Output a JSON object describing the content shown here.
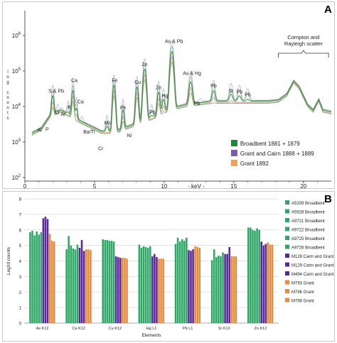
{
  "panel_a": {
    "tag": "A",
    "chart_data": {
      "type": "line",
      "xlabel": "- keV -",
      "ylabel": "log counts",
      "xlim": [
        0,
        22
      ],
      "ylim_log10": [
        1.9,
        6.7
      ],
      "x_ticks": [
        0,
        5,
        10,
        15,
        20
      ],
      "y_ticks": [
        {
          "exp": 2,
          "label": "10",
          "sup": "2"
        },
        {
          "exp": 3,
          "label": "10",
          "sup": "3"
        },
        {
          "exp": 4,
          "label": "10",
          "sup": "4"
        },
        {
          "exp": 5,
          "label": "10",
          "sup": "5"
        },
        {
          "exp": 6,
          "label": "10",
          "sup": "6"
        }
      ],
      "legend_position": "bottom-right",
      "series": [
        {
          "name": "Broadbent 1881 + 1879",
          "color": "#1a8a3a"
        },
        {
          "name": "Grant and Cairn 1888 + 1889",
          "color": "#7b5ea7"
        },
        {
          "name": "Grant 1892",
          "color": "#f0a050"
        }
      ],
      "baseline": [
        [
          0,
          3.05
        ],
        [
          0.5,
          3.25
        ],
        [
          1.2,
          3.4
        ],
        [
          1.8,
          3.75
        ],
        [
          2.6,
          3.9
        ],
        [
          3.5,
          3.7
        ],
        [
          4.2,
          3.55
        ],
        [
          5.5,
          3.3
        ],
        [
          6.5,
          3.3
        ],
        [
          7.5,
          3.45
        ],
        [
          8.5,
          3.6
        ],
        [
          9.5,
          3.75
        ],
        [
          10.5,
          3.95
        ],
        [
          11.5,
          4.05
        ],
        [
          12.5,
          4.1
        ],
        [
          13.5,
          4.15
        ],
        [
          14.5,
          4.15
        ],
        [
          15.5,
          4.15
        ],
        [
          16.5,
          4.15
        ],
        [
          17.5,
          4.15
        ],
        [
          18.2,
          4.18
        ],
        [
          18.8,
          4.35
        ],
        [
          19.3,
          4.72
        ],
        [
          19.7,
          4.55
        ],
        [
          20.3,
          4.05
        ],
        [
          20.7,
          3.9
        ],
        [
          21.1,
          4.2
        ],
        [
          21.4,
          3.9
        ],
        [
          22,
          3.85
        ]
      ],
      "peaks": [
        {
          "x": 1.5,
          "h": 3.3,
          "w": 0.06
        },
        {
          "x": 2.0,
          "h": 4.3,
          "w": 0.07
        },
        {
          "x": 2.35,
          "h": 3.75,
          "w": 0.06
        },
        {
          "x": 2.65,
          "h": 3.65,
          "w": 0.06
        },
        {
          "x": 3.1,
          "h": 3.85,
          "w": 0.06
        },
        {
          "x": 3.45,
          "h": 4.45,
          "w": 0.07
        },
        {
          "x": 3.7,
          "h": 3.95,
          "w": 0.06
        },
        {
          "x": 4.1,
          "h": 3.4,
          "w": 0.07
        },
        {
          "x": 4.5,
          "h": 3.2,
          "w": 0.07
        },
        {
          "x": 5.0,
          "h": 2.6,
          "w": 0.07
        },
        {
          "x": 5.4,
          "h": 2.75,
          "w": 0.07
        },
        {
          "x": 5.9,
          "h": 3.45,
          "w": 0.07
        },
        {
          "x": 6.4,
          "h": 4.6,
          "w": 0.08
        },
        {
          "x": 7.05,
          "h": 3.9,
          "w": 0.07
        },
        {
          "x": 7.45,
          "h": 3.15,
          "w": 0.07
        },
        {
          "x": 8.05,
          "h": 4.55,
          "w": 0.08
        },
        {
          "x": 8.6,
          "h": 5.05,
          "w": 0.09
        },
        {
          "x": 9.1,
          "h": 3.75,
          "w": 0.08
        },
        {
          "x": 9.6,
          "h": 4.4,
          "w": 0.08
        },
        {
          "x": 9.95,
          "h": 4.2,
          "w": 0.08
        },
        {
          "x": 10.55,
          "h": 5.55,
          "w": 0.1
        },
        {
          "x": 11.9,
          "h": 4.7,
          "w": 0.1
        },
        {
          "x": 12.6,
          "h": 3.9,
          "w": 0.09
        },
        {
          "x": 13.55,
          "h": 4.45,
          "w": 0.09
        },
        {
          "x": 14.8,
          "h": 4.35,
          "w": 0.1
        },
        {
          "x": 15.4,
          "h": 4.3,
          "w": 0.1
        },
        {
          "x": 16.0,
          "h": 4.2,
          "w": 0.1
        }
      ],
      "annotations": [
        {
          "label": "Al",
          "x": 1.05,
          "y": 3.25
        },
        {
          "label": "P",
          "x": 1.6,
          "y": 3.27
        },
        {
          "label": "S & Pb",
          "x": 2.25,
          "y": 4.35
        },
        {
          "label": "Cl",
          "x": 2.3,
          "y": 3.75
        },
        {
          "label": "Ar",
          "x": 2.75,
          "y": 3.7
        },
        {
          "label": "K",
          "x": 3.2,
          "y": 3.9
        },
        {
          "label": "Ca",
          "x": 3.55,
          "y": 4.65
        },
        {
          "label": "Ca",
          "x": 4.0,
          "y": 4.05
        },
        {
          "label": "Ba/Ti",
          "x": 4.6,
          "y": 3.2
        },
        {
          "label": "Cr",
          "x": 5.45,
          "y": 2.73
        },
        {
          "label": "Mn",
          "x": 5.95,
          "y": 3.45
        },
        {
          "label": "Fe",
          "x": 6.45,
          "y": 4.65
        },
        {
          "label": "Fe",
          "x": 7.05,
          "y": 3.88
        },
        {
          "label": "Ni",
          "x": 7.5,
          "y": 3.1
        },
        {
          "label": "Cu",
          "x": 8.1,
          "y": 4.6
        },
        {
          "label": "Zn",
          "x": 8.6,
          "y": 5.1
        },
        {
          "label": "Pb",
          "x": 9.15,
          "y": 3.75
        },
        {
          "label": "Zn",
          "x": 9.6,
          "y": 4.45
        },
        {
          "label": "Hg",
          "x": 10.05,
          "y": 4.22
        },
        {
          "label": "As & Pb",
          "x": 10.7,
          "y": 5.75
        },
        {
          "label": "As & Hg",
          "x": 12.0,
          "y": 4.85
        },
        {
          "label": "Pb",
          "x": 12.35,
          "y": 4.0
        },
        {
          "label": "Pb",
          "x": 13.55,
          "y": 4.5
        },
        {
          "label": "Sr",
          "x": 14.8,
          "y": 4.35
        },
        {
          "label": "Pb",
          "x": 15.4,
          "y": 4.33
        },
        {
          "label": "Pb",
          "x": 16.0,
          "y": 4.25
        }
      ],
      "scatter_label": [
        "Compton and",
        "Rayleigh scatter"
      ]
    }
  },
  "panel_b": {
    "tag": "B",
    "chart_data": {
      "type": "bar",
      "xlabel": "Elements",
      "ylabel": "Log10 counts",
      "ylim": [
        0,
        8
      ],
      "y_ticks": [
        0,
        1,
        2,
        3,
        4,
        5,
        6,
        7,
        8
      ],
      "grid": true,
      "legend_position": "right",
      "categories": [
        "As K12",
        "Ca K12",
        "Cu K12",
        "Hg L1",
        "Pb L1",
        "Sr K12",
        "Zn K12"
      ],
      "series": [
        {
          "name": "A5339 Broadbent",
          "color": "#2fa866",
          "values": [
            5.85,
            4.75,
            5.4,
            5.05,
            5.1,
            4.05,
            6.15
          ]
        },
        {
          "name": "A5928 Broadbent",
          "color": "#2fa866",
          "values": [
            5.95,
            5.6,
            5.35,
            4.85,
            5.5,
            4.75,
            6.15
          ]
        },
        {
          "name": "A9721 Broadbent",
          "color": "#2fa866",
          "values": [
            5.65,
            5.0,
            5.35,
            4.95,
            5.25,
            4.25,
            6.0
          ]
        },
        {
          "name": "A9722 Broadbent",
          "color": "#2fa866",
          "values": [
            5.9,
            4.8,
            5.3,
            4.9,
            5.4,
            4.35,
            5.95
          ]
        },
        {
          "name": "A9725 Broadbent",
          "color": "#2fa866",
          "values": [
            5.7,
            4.75,
            5.3,
            4.85,
            5.3,
            4.3,
            6.1
          ]
        },
        {
          "name": "A9726 Broadbent",
          "color": "#2fa866",
          "values": [
            5.85,
            5.05,
            5.25,
            4.95,
            5.5,
            4.55,
            6.0
          ]
        },
        {
          "name": "M128 Cairn and Grant",
          "color": "#5a2a9a",
          "values": [
            6.75,
            4.85,
            4.3,
            4.3,
            4.7,
            4.45,
            5.25
          ]
        },
        {
          "name": "M129 Cairn and Grant",
          "color": "#5a2a9a",
          "values": [
            6.85,
            5.35,
            4.25,
            4.45,
            4.65,
            4.45,
            5.0
          ]
        },
        {
          "name": "M494 Cairn and Grant",
          "color": "#5a2a9a",
          "values": [
            6.7,
            4.65,
            4.2,
            4.25,
            4.75,
            4.9,
            5.1
          ]
        },
        {
          "name": "M793 Grant",
          "color": "#e88a3c",
          "values": [
            5.75,
            4.75,
            4.2,
            4.15,
            4.95,
            4.3,
            5.2
          ]
        },
        {
          "name": "M796 Grant",
          "color": "#e88a3c",
          "values": [
            5.3,
            4.75,
            4.2,
            4.15,
            4.9,
            4.3,
            5.05
          ]
        },
        {
          "name": "M798 Grant",
          "color": "#e88a3c",
          "values": [
            5.25,
            4.7,
            4.15,
            4.15,
            4.85,
            4.3,
            5.05
          ]
        }
      ]
    }
  }
}
